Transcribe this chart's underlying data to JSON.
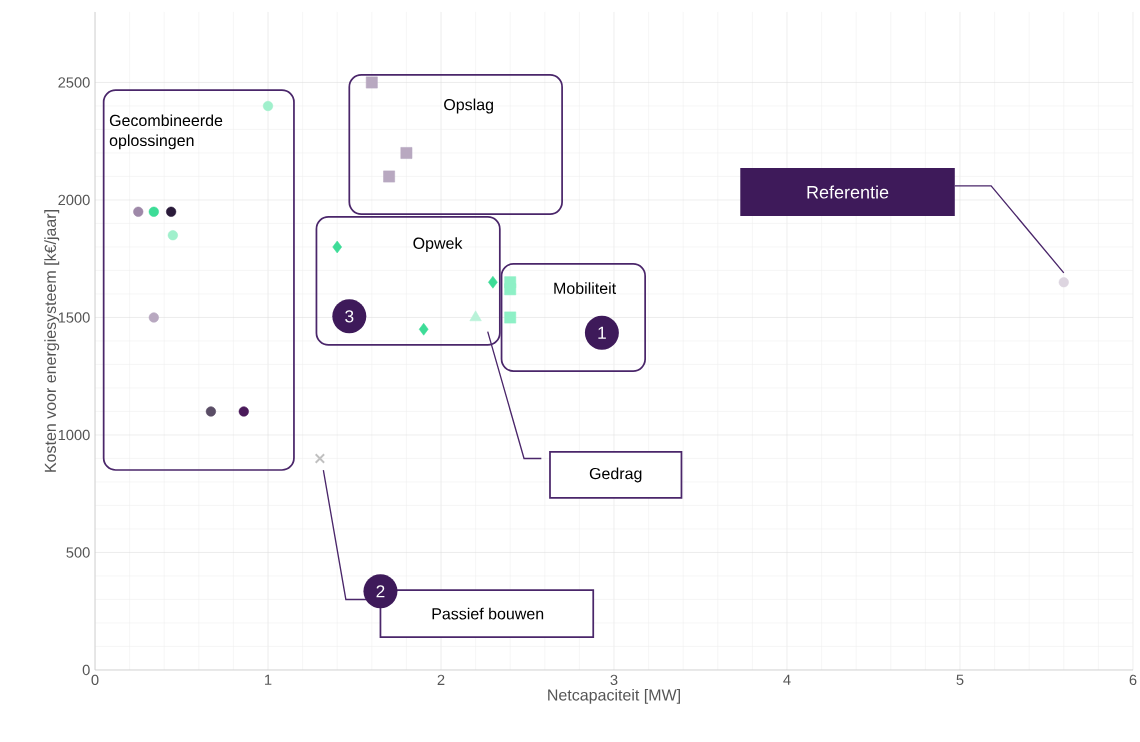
{
  "chart_data": {
    "type": "scatter",
    "xlabel": "Netcapaciteit [MW]",
    "ylabel": "Kosten voor energiesysteem [k€/jaar]",
    "xlim": [
      0,
      6
    ],
    "ylim": [
      0,
      2800
    ],
    "xticks": [
      0,
      1,
      2,
      3,
      4,
      5,
      6
    ],
    "yticks": [
      0,
      500,
      1000,
      1500,
      2000,
      2500
    ],
    "grid": true,
    "series": [
      {
        "color": "#9e88a8",
        "marker": "circle",
        "x": [
          0.25
        ],
        "values": [
          1950
        ]
      },
      {
        "color": "#3ddc97",
        "marker": "circle",
        "x": [
          0.34
        ],
        "values": [
          1950
        ]
      },
      {
        "color": "#2a1a3a",
        "marker": "circle",
        "x": [
          0.44
        ],
        "values": [
          1950
        ]
      },
      {
        "color": "#a0f0cc",
        "marker": "circle",
        "x": [
          0.45,
          1.0
        ],
        "values": [
          1850,
          2400
        ]
      },
      {
        "color": "#b8a8c0",
        "marker": "circle",
        "x": [
          0.34
        ],
        "values": [
          1500
        ]
      },
      {
        "color": "#5a4d66",
        "marker": "circle",
        "x": [
          0.67
        ],
        "values": [
          1100
        ]
      },
      {
        "color": "#4a1a5a",
        "marker": "circle",
        "x": [
          0.86
        ],
        "values": [
          1100
        ]
      },
      {
        "color": "#b8a8c0",
        "marker": "square",
        "x": [
          1.6,
          1.8,
          1.7
        ],
        "values": [
          2500,
          2200,
          2100
        ]
      },
      {
        "color": "#3ddc97",
        "marker": "diamond",
        "x": [
          1.4,
          1.9,
          2.3
        ],
        "values": [
          1800,
          1450,
          1650
        ]
      },
      {
        "color": "#b8f2d8",
        "marker": "triangle",
        "x": [
          2.2
        ],
        "values": [
          1500
        ]
      },
      {
        "color": "#8ef0c6",
        "marker": "square",
        "x": [
          2.4,
          2.4,
          2.4
        ],
        "values": [
          1650,
          1620,
          1500
        ]
      },
      {
        "color": "#c0c0c0",
        "marker": "cross",
        "x": [
          1.3
        ],
        "values": [
          900
        ]
      },
      {
        "color": "#ddd5e0",
        "marker": "circle",
        "x": [
          5.6
        ],
        "values": [
          1650
        ]
      }
    ],
    "annotations": [
      "Gecombineerde oplossingen",
      "Opslag",
      "Opwek",
      "Mobiliteit",
      "Referentie",
      "Gedrag",
      "Passief bouwen",
      "1",
      "2",
      "3"
    ]
  }
}
